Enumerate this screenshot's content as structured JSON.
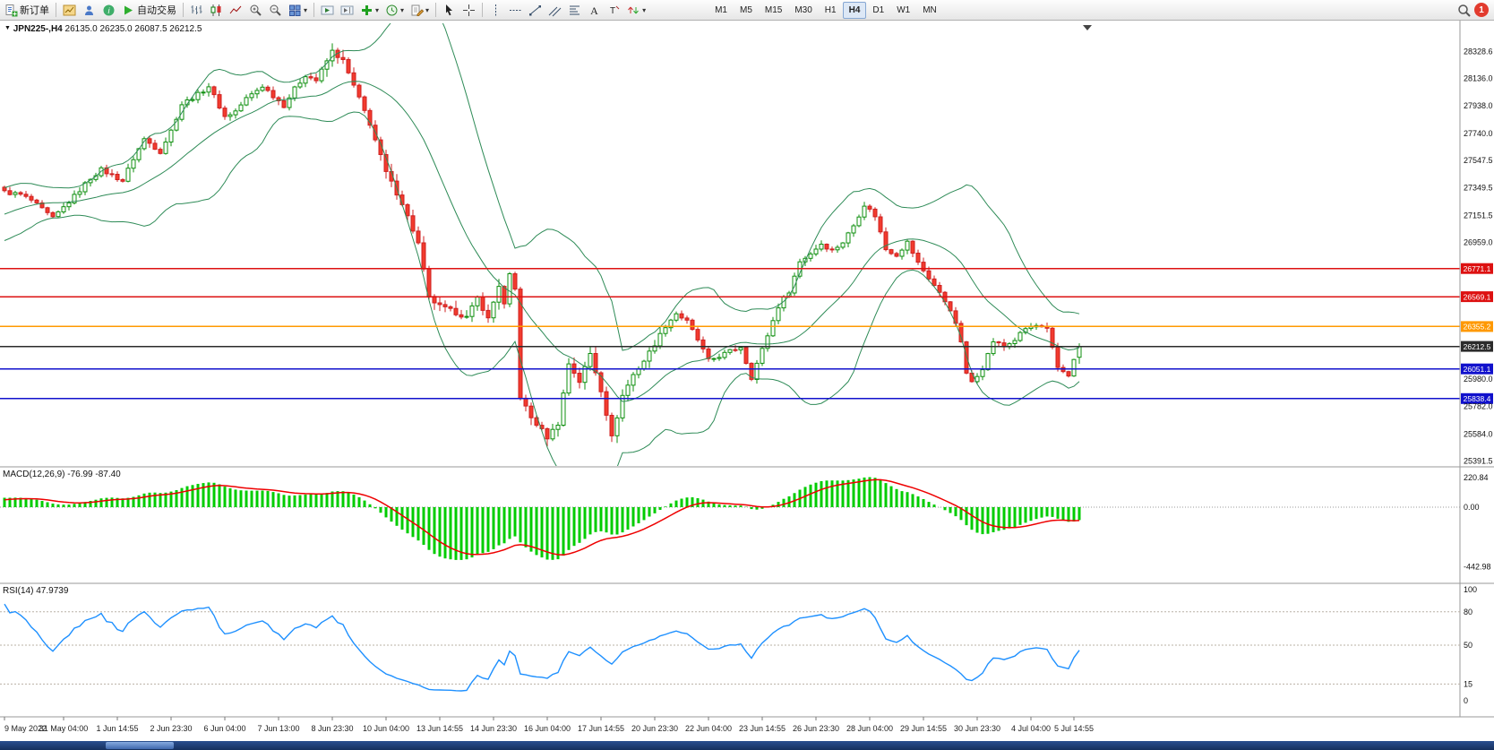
{
  "toolbar": {
    "new_order_label": "新订单",
    "autotrading_label": "自动交易",
    "timeframes": [
      "M1",
      "M5",
      "M15",
      "M30",
      "H1",
      "H4",
      "D1",
      "W1",
      "MN"
    ],
    "active_timeframe": "H4"
  },
  "notification": {
    "count": "1"
  },
  "chart_header": {
    "symbol_tf": "JPN225-,H4",
    "ohlc": "26135.0 26235.0 26087.5 26212.5"
  },
  "chart_data": {
    "type": "candlestick",
    "symbol": "JPN225-",
    "timeframe": "H4",
    "current_bar": {
      "open": 26135.0,
      "high": 26235.0,
      "low": 26087.5,
      "close": 26212.5
    },
    "price_axis_labels": [
      "28328.6",
      "28136.0",
      "27938.0",
      "27740.0",
      "27547.5",
      "27349.5",
      "27151.5",
      "26959.0",
      "25980.0",
      "25782.0",
      "25584.0",
      "25391.5"
    ],
    "horizontal_lines": [
      {
        "price": 26771.1,
        "label": "26771.1",
        "color": "#dd1111"
      },
      {
        "price": 26569.1,
        "label": "26569.1",
        "color": "#dd1111"
      },
      {
        "price": 26355.2,
        "label": "26355.2",
        "color": "#ff9900"
      },
      {
        "price": 26212.5,
        "label": "26212.5",
        "color": "#2b2b2b"
      },
      {
        "price": 26051.1,
        "label": "26051.1",
        "color": "#1111cc"
      },
      {
        "price": 25838.4,
        "label": "25838.4",
        "color": "#1111cc"
      }
    ],
    "candle_up": {
      "fill": "#ffffff",
      "stroke": "#0e8f0e"
    },
    "candle_down": {
      "fill": "#f23b2e",
      "stroke": "#cf1f1f"
    },
    "indicators": {
      "bollinger": {
        "color": "#2e8b57"
      },
      "macd": {
        "label": "MACD(12,26,9) -76.99 -87.40",
        "value": -76.99,
        "signal": -87.4,
        "scale_labels": [
          "220.84",
          "0.00",
          "-442.98"
        ],
        "histogram_color": "#00cc00",
        "signal_color": "#ee0000"
      },
      "rsi": {
        "label": "RSI(14) 47.9739",
        "value": 47.9739,
        "scale_labels": [
          "100",
          "80",
          "50",
          "15",
          "0"
        ],
        "levels": [
          80,
          50,
          15
        ],
        "color": "#1e90ff"
      }
    },
    "time_labels": [
      {
        "i": 0,
        "t": "9 May 2022"
      },
      {
        "i": 11,
        "t": "31 May 04:00"
      },
      {
        "i": 21,
        "t": "1 Jun 14:55"
      },
      {
        "i": 31,
        "t": "2 Jun 23:30"
      },
      {
        "i": 41,
        "t": "6 Jun 04:00"
      },
      {
        "i": 51,
        "t": "7 Jun 13:00"
      },
      {
        "i": 61,
        "t": "8 Jun 23:30"
      },
      {
        "i": 71,
        "t": "10 Jun 04:00"
      },
      {
        "i": 81,
        "t": "13 Jun 14:55"
      },
      {
        "i": 91,
        "t": "14 Jun 23:30"
      },
      {
        "i": 101,
        "t": "16 Jun 04:00"
      },
      {
        "i": 111,
        "t": "17 Jun 14:55"
      },
      {
        "i": 121,
        "t": "20 Jun 23:30"
      },
      {
        "i": 131,
        "t": "22 Jun 04:00"
      },
      {
        "i": 141,
        "t": "23 Jun 14:55"
      },
      {
        "i": 151,
        "t": "26 Jun 23:30"
      },
      {
        "i": 161,
        "t": "28 Jun 04:00"
      },
      {
        "i": 171,
        "t": "29 Jun 14:55"
      },
      {
        "i": 181,
        "t": "30 Jun 23:30"
      },
      {
        "i": 191,
        "t": "4 Jul 04:00"
      },
      {
        "i": 199,
        "t": "5 Jul 14:55"
      }
    ],
    "price_path_anchors": [
      [
        0,
        27320
      ],
      [
        3,
        27300
      ],
      [
        5,
        27260
      ],
      [
        9,
        27130
      ],
      [
        13,
        27290
      ],
      [
        16,
        27420
      ],
      [
        18,
        27480
      ],
      [
        22,
        27400
      ],
      [
        24,
        27560
      ],
      [
        26,
        27700
      ],
      [
        29,
        27610
      ],
      [
        31,
        27760
      ],
      [
        33,
        27950
      ],
      [
        36,
        28020
      ],
      [
        38,
        28080
      ],
      [
        41,
        27860
      ],
      [
        43,
        27900
      ],
      [
        45,
        27990
      ],
      [
        48,
        28080
      ],
      [
        50,
        28010
      ],
      [
        52,
        27940
      ],
      [
        54,
        28060
      ],
      [
        56,
        28160
      ],
      [
        58,
        28120
      ],
      [
        61,
        28330
      ],
      [
        63,
        28260
      ],
      [
        65,
        28080
      ],
      [
        68,
        27810
      ],
      [
        71,
        27460
      ],
      [
        74,
        27240
      ],
      [
        77,
        26950
      ],
      [
        79,
        26560
      ],
      [
        81,
        26500
      ],
      [
        83,
        26470
      ],
      [
        86,
        26420
      ],
      [
        88,
        26560
      ],
      [
        90,
        26410
      ],
      [
        92,
        26650
      ],
      [
        93,
        26510
      ],
      [
        94,
        26720
      ],
      [
        95,
        26620
      ],
      [
        96,
        25850
      ],
      [
        98,
        25700
      ],
      [
        100,
        25610
      ],
      [
        101,
        25560
      ],
      [
        103,
        25660
      ],
      [
        105,
        26090
      ],
      [
        107,
        25960
      ],
      [
        109,
        26160
      ],
      [
        111,
        25900
      ],
      [
        113,
        25560
      ],
      [
        115,
        25860
      ],
      [
        117,
        26010
      ],
      [
        119,
        26110
      ],
      [
        121,
        26230
      ],
      [
        123,
        26360
      ],
      [
        125,
        26450
      ],
      [
        127,
        26390
      ],
      [
        129,
        26260
      ],
      [
        131,
        26110
      ],
      [
        134,
        26160
      ],
      [
        137,
        26210
      ],
      [
        139,
        25990
      ],
      [
        141,
        26190
      ],
      [
        144,
        26500
      ],
      [
        146,
        26610
      ],
      [
        148,
        26820
      ],
      [
        150,
        26880
      ],
      [
        152,
        26950
      ],
      [
        154,
        26900
      ],
      [
        156,
        26960
      ],
      [
        158,
        27080
      ],
      [
        160,
        27230
      ],
      [
        162,
        27150
      ],
      [
        164,
        26910
      ],
      [
        166,
        26870
      ],
      [
        168,
        26960
      ],
      [
        170,
        26810
      ],
      [
        173,
        26650
      ],
      [
        176,
        26480
      ],
      [
        178,
        26250
      ],
      [
        179,
        26010
      ],
      [
        180,
        25960
      ],
      [
        182,
        26060
      ],
      [
        184,
        26250
      ],
      [
        186,
        26210
      ],
      [
        188,
        26260
      ],
      [
        190,
        26340
      ],
      [
        192,
        26360
      ],
      [
        194,
        26330
      ],
      [
        196,
        26060
      ],
      [
        198,
        26010
      ],
      [
        200,
        26212.5
      ]
    ]
  },
  "taskbar": {
    "color": "#1c3a6d"
  }
}
